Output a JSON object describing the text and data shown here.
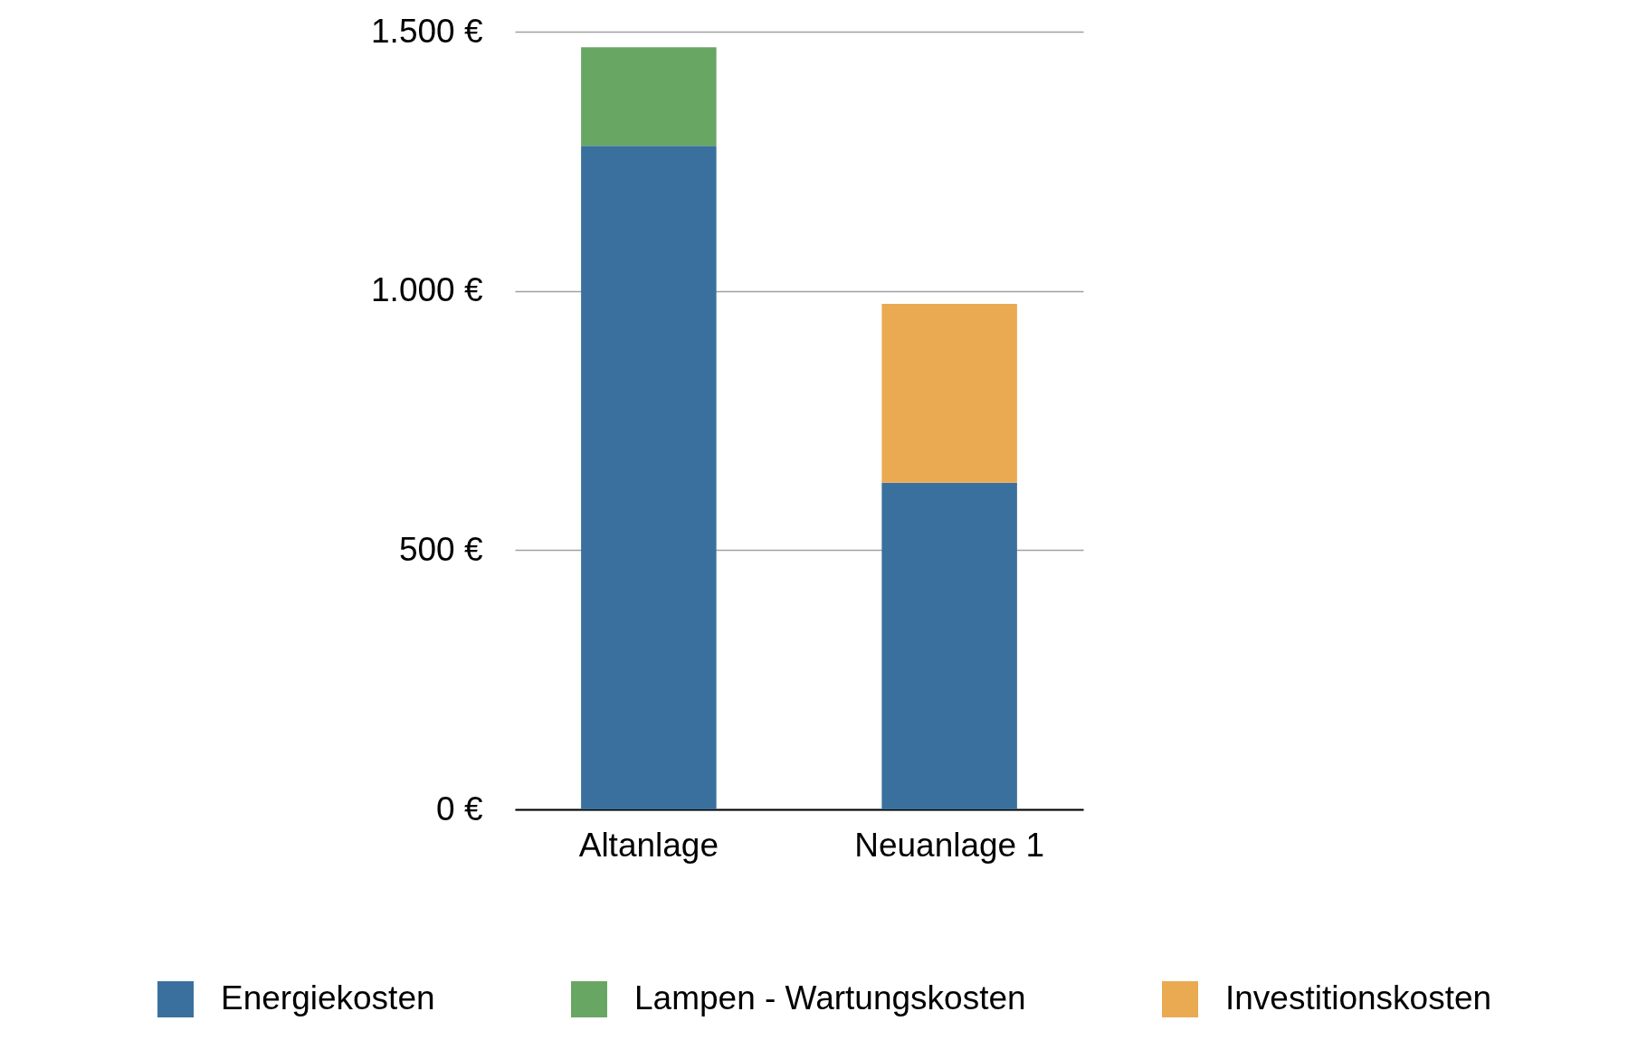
{
  "chart_data": {
    "type": "bar",
    "stacked": true,
    "categories": [
      "Altanlage",
      "Neuanlage 1"
    ],
    "series": [
      {
        "name": "Energiekosten",
        "color": "#3a709e",
        "values": [
          1280,
          630
        ]
      },
      {
        "name": "Lampen - Wartungskosten",
        "color": "#68a663",
        "values": [
          190,
          null
        ]
      },
      {
        "name": "Investitionskosten",
        "color": "#eaaa52",
        "values": [
          null,
          345
        ]
      }
    ],
    "ylim": [
      0,
      1500
    ],
    "yticks": [
      {
        "value": 0,
        "label": "0 €"
      },
      {
        "value": 500,
        "label": "500 €"
      },
      {
        "value": 1000,
        "label": "1.000 €"
      },
      {
        "value": 1500,
        "label": "1.500 €"
      }
    ],
    "grid": "y",
    "legend": "bottom"
  }
}
